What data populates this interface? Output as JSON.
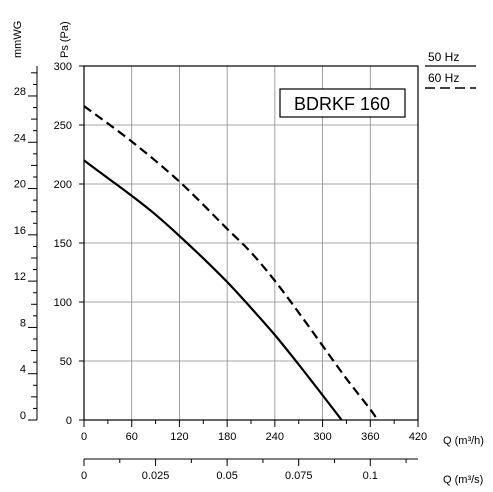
{
  "chart_data": {
    "type": "line",
    "title": "BDRKF 160",
    "x_axis": {
      "label": "Q (m³/h)",
      "range": [
        0,
        420
      ],
      "ticks": [
        0,
        60,
        120,
        180,
        240,
        300,
        360,
        420
      ]
    },
    "x2_axis": {
      "label": "Q (m³/s)",
      "range": [
        0,
        0.11667
      ],
      "ticks": [
        0,
        0.025,
        0.05,
        0.075,
        0.1
      ],
      "tick_labels": [
        "0",
        "0.025",
        "0.05",
        "0.075",
        "0.1"
      ]
    },
    "y_axis": {
      "label": "Ps (Pa)",
      "range": [
        0,
        300
      ],
      "ticks": [
        0,
        50,
        100,
        150,
        200,
        250,
        300
      ]
    },
    "y2_axis": {
      "label": "mmWG",
      "range": [
        0,
        30.59
      ],
      "ticks": [
        0,
        4,
        8,
        12,
        16,
        20,
        24,
        28
      ]
    },
    "grid": true,
    "legend_position": "top-right",
    "series": [
      {
        "name": "50 Hz",
        "style": "solid",
        "points": [
          [
            0,
            220
          ],
          [
            30,
            205
          ],
          [
            60,
            190
          ],
          [
            90,
            174
          ],
          [
            120,
            156
          ],
          [
            150,
            137
          ],
          [
            180,
            117
          ],
          [
            210,
            95
          ],
          [
            240,
            72
          ],
          [
            270,
            47
          ],
          [
            300,
            21
          ],
          [
            324,
            0
          ]
        ]
      },
      {
        "name": "60 Hz",
        "style": "dashed",
        "points": [
          [
            0,
            266
          ],
          [
            60,
            236
          ],
          [
            120,
            202
          ],
          [
            180,
            162
          ],
          [
            210,
            142
          ],
          [
            240,
            118
          ],
          [
            270,
            91
          ],
          [
            300,
            63
          ],
          [
            330,
            35
          ],
          [
            360,
            9
          ],
          [
            369,
            0
          ]
        ]
      }
    ]
  }
}
